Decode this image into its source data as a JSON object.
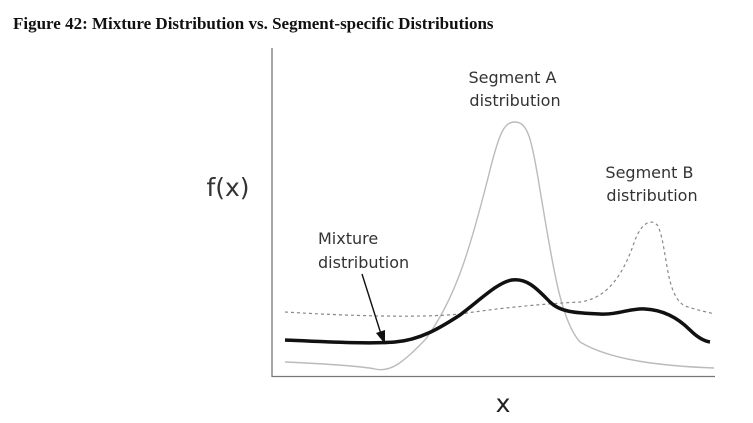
{
  "figure": {
    "title": "Figure 42: Mixture Distribution vs. Segment-specific Distributions",
    "y_label": "f(x)",
    "x_label": "x",
    "annotations": [
      {
        "lines": [
          "Segment A",
          "distribution"
        ]
      },
      {
        "lines": [
          "Segment B",
          "distribution"
        ]
      },
      {
        "lines": [
          "Mixture",
          "distribution"
        ]
      }
    ]
  }
}
